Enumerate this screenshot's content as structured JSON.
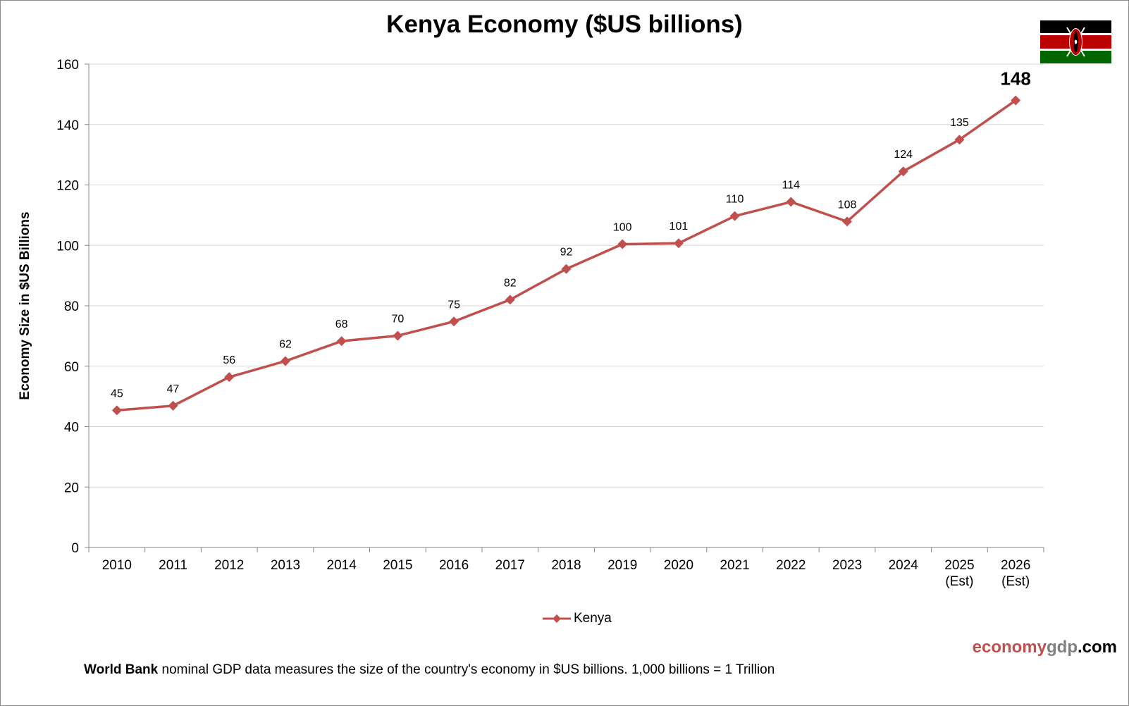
{
  "title": "Kenya Economy ($US billions)",
  "brand": {
    "part1": "economy",
    "part2": "gdp",
    "part3": ".com"
  },
  "footnote": {
    "bold": "World Bank",
    "rest": " nominal GDP data  measures the size of the country's economy in $US billions. 1,000 billions = 1 Trillion"
  },
  "colors": {
    "series": "#c0504d",
    "grid": "#d9d9d9",
    "axis": "#868686",
    "flag_black": "#000000",
    "flag_red": "#bb0000",
    "flag_green": "#006600"
  },
  "flag_icon": "kenya-flag-icon",
  "chart_data": {
    "type": "line",
    "title": "Kenya Economy ($US billions)",
    "xlabel": "",
    "ylabel": "Economy Size in $US Billions",
    "ylim": [
      0,
      160
    ],
    "yticks": [
      0,
      20,
      40,
      60,
      80,
      100,
      120,
      140,
      160
    ],
    "grid": true,
    "legend": "bottom-center",
    "categories": [
      "2010",
      "2011",
      "2012",
      "2013",
      "2014",
      "2015",
      "2016",
      "2017",
      "2018",
      "2019",
      "2020",
      "2021",
      "2022",
      "2023",
      "2024",
      "2025\n(Est)",
      "2026\n(Est)"
    ],
    "series": [
      {
        "name": "Kenya",
        "values": [
          45.4,
          46.9,
          56.4,
          61.7,
          68.3,
          70.1,
          74.8,
          82.0,
          92.2,
          100.4,
          100.7,
          109.7,
          114.4,
          107.9,
          124.5,
          135.0,
          148.0
        ],
        "labels": [
          "45",
          "47",
          "56",
          "62",
          "68",
          "70",
          "75",
          "82",
          "92",
          "100",
          "101",
          "110",
          "114",
          "108",
          "124",
          "135",
          "148"
        ]
      }
    ]
  }
}
